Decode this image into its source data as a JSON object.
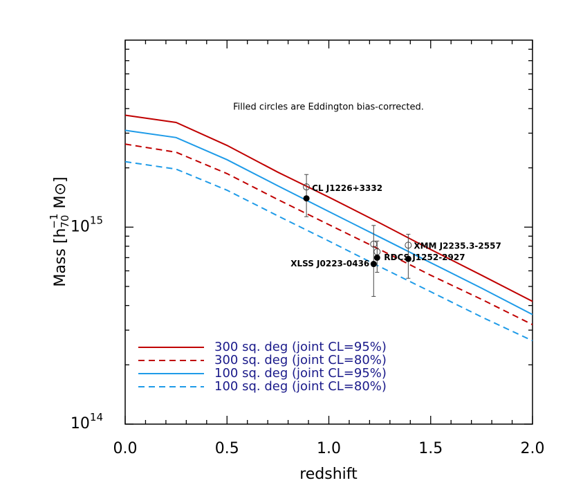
{
  "chart_data": {
    "type": "line",
    "annotation": "Filled circles are Eddington bias-corrected.",
    "xlabel": "redshift",
    "ylabel": {
      "text": "Mass  [h",
      "sub": "70",
      "sup": "−1",
      "tail": "  M⊙]"
    },
    "log_y": true,
    "legend": "lower left",
    "xlim": [
      0,
      2
    ],
    "xticks": [
      {
        "value": 0,
        "label": "0.0"
      },
      {
        "value": 0.5,
        "label": "0.5"
      },
      {
        "value": 1,
        "label": "1.0"
      },
      {
        "value": 1.5,
        "label": "1.5"
      },
      {
        "value": 2,
        "label": "2.0"
      }
    ],
    "xminorticks": [
      0.1,
      0.2,
      0.3,
      0.4,
      0.6,
      0.7,
      0.8,
      0.9,
      1.1,
      1.2,
      1.3,
      1.4,
      1.6,
      1.7,
      1.8,
      1.9
    ],
    "ylim": [
      100000000000000.0,
      8900000000000000.0
    ],
    "yticks": [
      {
        "value": 100000000000000.0,
        "label": "10",
        "exponent": "14"
      },
      {
        "value": 1000000000000000.0,
        "label": "10",
        "exponent": "15"
      }
    ],
    "yminorticks": [
      200000000000000.0,
      300000000000000.0,
      400000000000000.0,
      500000000000000.0,
      600000000000000.0,
      700000000000000.0,
      800000000000000.0,
      900000000000000.0,
      2000000000000000.0,
      3000000000000000.0,
      4000000000000000.0,
      5000000000000000.0,
      6000000000000000.0,
      7000000000000000.0,
      8000000000000000.0
    ],
    "x": [
      0,
      0.25,
      0.5,
      0.75,
      1,
      1.25,
      1.5,
      1.75,
      2
    ],
    "series": [
      {
        "name": "300 sq. deg (joint CL=95%)",
        "color": "#c00000",
        "dashed": false,
        "values": [
          3700000000000000.0,
          3400000000000000.0,
          2600000000000000.0,
          1900000000000000.0,
          1420000000000000.0,
          1050000000000000.0,
          770000000000000.0,
          570000000000000.0,
          420000000000000.0
        ]
      },
      {
        "name": "300 sq. deg (joint CL=80%)",
        "color": "#c00000",
        "dashed": true,
        "values": [
          2640000000000000.0,
          2400000000000000.0,
          1870000000000000.0,
          1380000000000000.0,
          1030000000000000.0,
          770000000000000.0,
          570000000000000.0,
          430000000000000.0,
          320000000000000.0
        ]
      },
      {
        "name": "100 sq. deg (joint CL=95%)",
        "color": "#1e9be8",
        "dashed": false,
        "values": [
          3100000000000000.0,
          2850000000000000.0,
          2200000000000000.0,
          1620000000000000.0,
          1200000000000000.0,
          890000000000000.0,
          660000000000000.0,
          490000000000000.0,
          360000000000000.0
        ]
      },
      {
        "name": "100 sq. deg (joint CL=80%)",
        "color": "#1e9be8",
        "dashed": true,
        "values": [
          2150000000000000.0,
          1970000000000000.0,
          1540000000000000.0,
          1140000000000000.0,
          850000000000000.0,
          630000000000000.0,
          470000000000000.0,
          350000000000000.0,
          265000000000000.0
        ]
      }
    ],
    "points": [
      {
        "name": "CL J1226+3332",
        "z": 0.89,
        "mass": 1400000000000000.0,
        "mass_open": 1600000000000000.0,
        "err_low": 1130000000000000.0,
        "err_high": 1850000000000000.0
      },
      {
        "name": "XLSS J0223-0436",
        "z": 1.22,
        "mass": 650000000000000.0,
        "mass_open": 820000000000000.0,
        "err_low": 445000000000000.0,
        "err_high": 1020000000000000.0
      },
      {
        "name": "RDCS J1252-2927",
        "z": 1.237,
        "mass": 700000000000000.0,
        "mass_open": 750000000000000.0,
        "err_low": 590000000000000.0,
        "err_high": 850000000000000.0
      },
      {
        "name": "XMM J2235.3-2557",
        "z": 1.39,
        "mass": 690000000000000.0,
        "mass_open": 810000000000000.0,
        "err_low": 550000000000000.0,
        "err_high": 920000000000000.0
      }
    ]
  }
}
